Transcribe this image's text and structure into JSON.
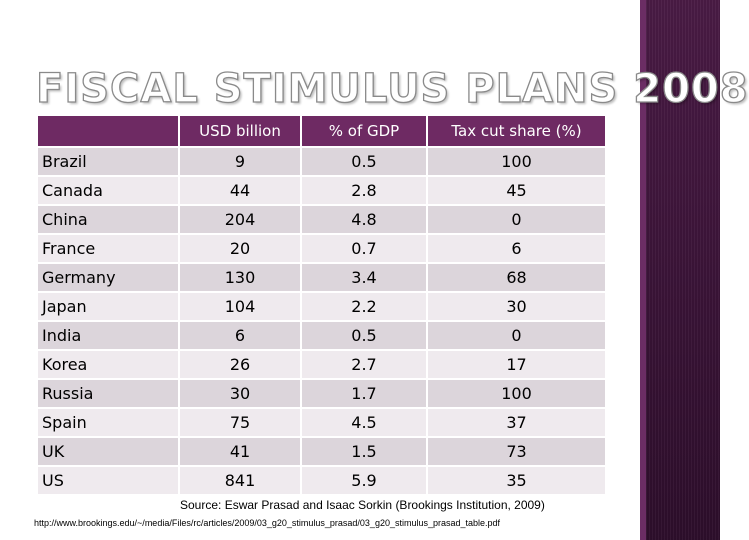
{
  "title": "FISCAL STIMULUS PLANS 2008",
  "colors": {
    "header_bg": "#6e2a63",
    "row_odd": "#dcd5db",
    "row_even": "#efeaee",
    "side_bar": "#3b1438"
  },
  "table": {
    "headers": [
      "",
      "USD billion",
      "% of GDP",
      "Tax cut share (%)"
    ],
    "rows": [
      [
        "Brazil",
        "9",
        "0.5",
        "100"
      ],
      [
        "Canada",
        "44",
        "2.8",
        "45"
      ],
      [
        "China",
        "204",
        "4.8",
        "0"
      ],
      [
        "France",
        "20",
        "0.7",
        "6"
      ],
      [
        "Germany",
        "130",
        "3.4",
        "68"
      ],
      [
        "Japan",
        "104",
        "2.2",
        "30"
      ],
      [
        "India",
        "6",
        "0.5",
        "0"
      ],
      [
        "Korea",
        "26",
        "2.7",
        "17"
      ],
      [
        "Russia",
        "30",
        "1.7",
        "100"
      ],
      [
        "Spain",
        "75",
        "4.5",
        "37"
      ],
      [
        "UK",
        "41",
        "1.5",
        "73"
      ],
      [
        "US",
        "841",
        "5.9",
        "35"
      ]
    ]
  },
  "source": "Source: Eswar Prasad and Isaac Sorkin (Brookings Institution, 2009)",
  "url": "http://www.brookings.edu/~/media/Files/rc/articles/2009/03_g20_stimulus_prasad/03_g20_stimulus_prasad_table.pdf"
}
